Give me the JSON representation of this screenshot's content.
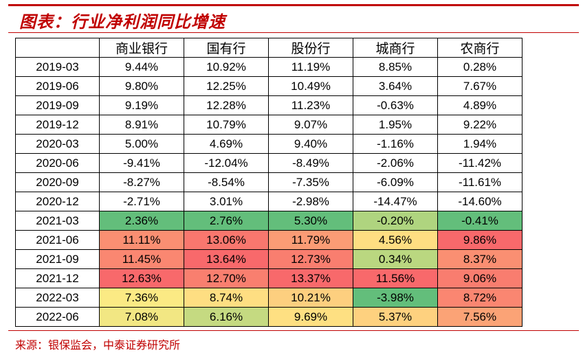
{
  "title": "图表：行业净利润同比增速",
  "source": "来源：银保监会，中泰证券研究所",
  "chart_data": {
    "type": "table",
    "title": "图表：行业净利润同比增速",
    "columns": [
      "",
      "商业银行",
      "国有行",
      "股份行",
      "城商行",
      "农商行"
    ],
    "rows": [
      {
        "period": "2019-03",
        "cells": [
          "9.44%",
          "10.92%",
          "11.19%",
          "8.85%",
          "0.28%"
        ]
      },
      {
        "period": "2019-06",
        "cells": [
          "9.80%",
          "12.25%",
          "10.49%",
          "3.64%",
          "7.67%"
        ]
      },
      {
        "period": "2019-09",
        "cells": [
          "9.19%",
          "12.28%",
          "11.23%",
          "-0.63%",
          "4.89%"
        ]
      },
      {
        "period": "2019-12",
        "cells": [
          "8.91%",
          "10.79%",
          "9.07%",
          "1.95%",
          "9.22%"
        ]
      },
      {
        "period": "2020-03",
        "cells": [
          "5.00%",
          "4.69%",
          "9.40%",
          "-1.16%",
          "1.94%"
        ]
      },
      {
        "period": "2020-06",
        "cells": [
          "-9.41%",
          "-12.04%",
          "-8.49%",
          "-2.06%",
          "-11.42%"
        ]
      },
      {
        "period": "2020-09",
        "cells": [
          "-8.27%",
          "-8.54%",
          "-7.35%",
          "-6.09%",
          "-11.61%"
        ]
      },
      {
        "period": "2020-12",
        "cells": [
          "-2.71%",
          "3.01%",
          "-2.98%",
          "-14.47%",
          "-14.60%"
        ]
      },
      {
        "period": "2021-03",
        "cells": [
          "2.36%",
          "2.76%",
          "5.30%",
          "-0.20%",
          "-0.41%"
        ]
      },
      {
        "period": "2021-06",
        "cells": [
          "11.11%",
          "13.06%",
          "11.79%",
          "4.56%",
          "9.86%"
        ]
      },
      {
        "period": "2021-09",
        "cells": [
          "11.45%",
          "13.64%",
          "12.73%",
          "0.34%",
          "8.37%"
        ]
      },
      {
        "period": "2021-12",
        "cells": [
          "12.63%",
          "12.70%",
          "13.37%",
          "11.56%",
          "9.06%"
        ]
      },
      {
        "period": "2022-03",
        "cells": [
          "7.36%",
          "8.74%",
          "10.21%",
          "-3.98%",
          "8.72%"
        ]
      },
      {
        "period": "2022-06",
        "cells": [
          "7.08%",
          "6.16%",
          "9.69%",
          "5.37%",
          "7.56%"
        ]
      }
    ],
    "heatmap_from_row": 8,
    "heatmap_colors": {
      "low": "#63be7b",
      "mid": "#ffeb84",
      "high": "#f8696b"
    }
  }
}
